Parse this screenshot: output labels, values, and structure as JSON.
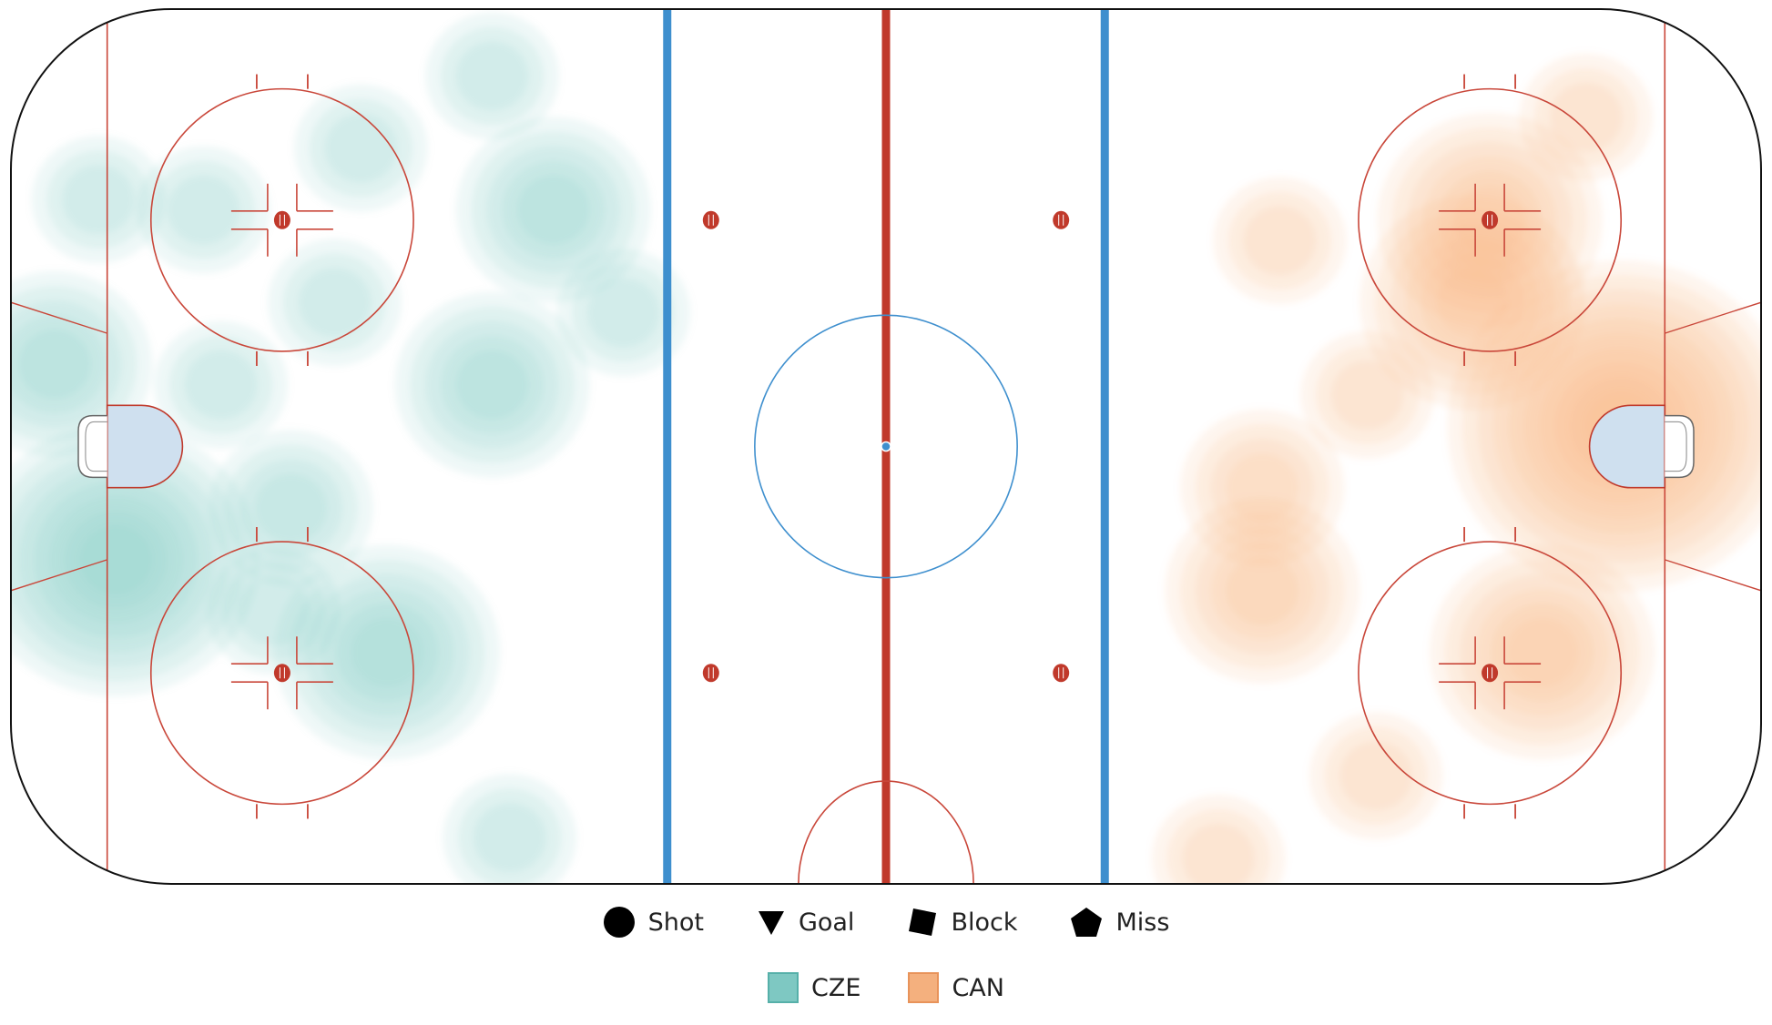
{
  "chart_data": {
    "type": "heatmap",
    "title": "",
    "xlabel": "",
    "ylabel": "",
    "xlim": [
      -100,
      100
    ],
    "ylim": [
      -42.5,
      42.5
    ],
    "grid": false,
    "legend_placement": "bottom-center",
    "event_legend": [
      {
        "label": "Shot",
        "marker": "circle"
      },
      {
        "label": "Goal",
        "marker": "triangle-down"
      },
      {
        "label": "Block",
        "marker": "square"
      },
      {
        "label": "Miss",
        "marker": "pentagon"
      }
    ],
    "series": [
      {
        "name": "CZE",
        "color": "#7ec8c2",
        "stroke": "#56b0a9",
        "hotspots": [
          {
            "x": -88,
            "y": -11,
            "level": 6
          },
          {
            "x": -95,
            "y": 8,
            "level": 3
          },
          {
            "x": -57,
            "y": -20,
            "level": 4
          },
          {
            "x": -68,
            "y": -6,
            "level": 2
          },
          {
            "x": -45,
            "y": 6,
            "level": 3
          },
          {
            "x": -76,
            "y": 6,
            "level": 1
          },
          {
            "x": -38,
            "y": 23,
            "level": 3
          },
          {
            "x": -45,
            "y": 36,
            "level": 1
          },
          {
            "x": -43,
            "y": -38,
            "level": 1
          },
          {
            "x": -30,
            "y": 13,
            "level": 1
          },
          {
            "x": -78,
            "y": 23,
            "level": 1
          },
          {
            "x": -60,
            "y": 29,
            "level": 1
          },
          {
            "x": -90,
            "y": 24,
            "level": 1
          },
          {
            "x": -70,
            "y": -16,
            "level": 1
          },
          {
            "x": -63,
            "y": 14,
            "level": 1
          }
        ]
      },
      {
        "name": "CAN",
        "color": "#f4b07e",
        "stroke": "#e8935a",
        "hotspots": [
          {
            "x": 84,
            "y": 2,
            "level": 8
          },
          {
            "x": 75,
            "y": -20,
            "level": 4
          },
          {
            "x": 67,
            "y": 14,
            "level": 4
          },
          {
            "x": 69,
            "y": 22,
            "level": 4
          },
          {
            "x": 43,
            "y": -14,
            "level": 3
          },
          {
            "x": 43,
            "y": -4,
            "level": 2
          },
          {
            "x": 56,
            "y": -32,
            "level": 1
          },
          {
            "x": 38,
            "y": -40,
            "level": 1
          },
          {
            "x": 80,
            "y": 32,
            "level": 1
          },
          {
            "x": 45,
            "y": 20,
            "level": 1
          },
          {
            "x": 55,
            "y": 5,
            "level": 1
          }
        ]
      }
    ]
  }
}
